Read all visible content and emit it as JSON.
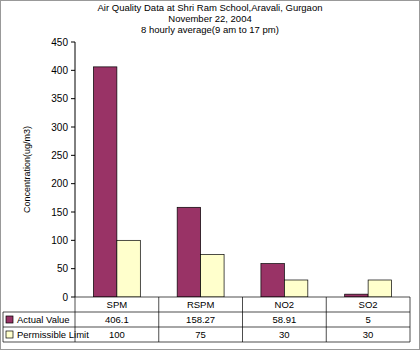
{
  "chart_data": {
    "type": "bar",
    "title": [
      "Air Quality Data at Shri Ram School,Aravali, Gurgaon",
      "November 22, 2004",
      "8 hourly average(9 am to 17 pm)"
    ],
    "y_label": "Concentration(ug/m3)",
    "categories": [
      "SPM",
      "RSPM",
      "NO2",
      "SO2"
    ],
    "series": [
      {
        "name": "Actual Value",
        "color": "#993366",
        "values": [
          406.1,
          158.27,
          58.91,
          5
        ]
      },
      {
        "name": "Permissible Limit",
        "color": "#ffffcc",
        "values": [
          100,
          75,
          30,
          30
        ]
      }
    ],
    "ylim": [
      0,
      450
    ],
    "yticks": [
      0,
      50,
      100,
      150,
      200,
      250,
      300,
      350,
      400,
      450
    ],
    "grid": false,
    "data_labels": false
  }
}
